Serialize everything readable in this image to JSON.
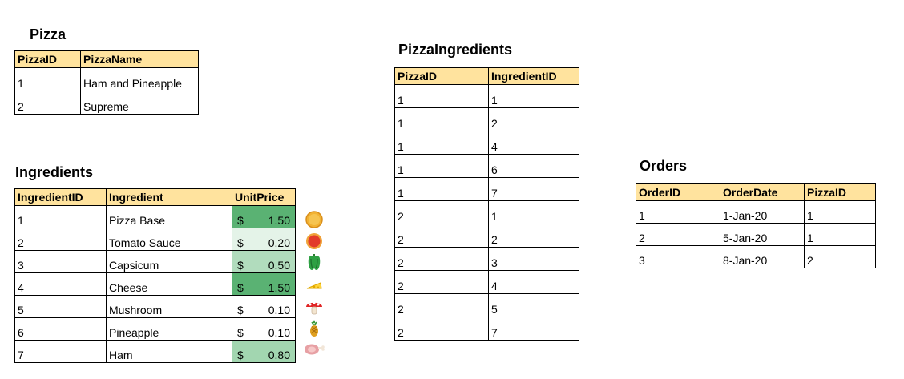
{
  "pizza": {
    "title": "Pizza",
    "headers": [
      "PizzaID",
      "PizzaName"
    ],
    "rows": [
      [
        "1",
        "Ham and Pineapple"
      ],
      [
        "2",
        "Supreme"
      ]
    ]
  },
  "ingredients": {
    "title": "Ingredients",
    "headers": [
      "IngredientID",
      "Ingredient",
      "UnitPrice"
    ],
    "currency": "$",
    "rows": [
      {
        "id": "1",
        "name": "Pizza Base",
        "price": "1.50",
        "color": "#5ab273",
        "icon": "pizza-base-icon"
      },
      {
        "id": "2",
        "name": "Tomato Sauce",
        "price": "0.20",
        "color": "#e4f3e8",
        "icon": "tomato-sauce-icon"
      },
      {
        "id": "3",
        "name": "Capsicum",
        "price": "0.50",
        "color": "#b1dcbd",
        "icon": "capsicum-icon"
      },
      {
        "id": "4",
        "name": "Cheese",
        "price": "1.50",
        "color": "#5ab273",
        "icon": "cheese-icon"
      },
      {
        "id": "5",
        "name": "Mushroom",
        "price": "0.10",
        "color": "#ffffff",
        "icon": "mushroom-icon"
      },
      {
        "id": "6",
        "name": "Pineapple",
        "price": "0.10",
        "color": "#ffffff",
        "icon": "pineapple-icon"
      },
      {
        "id": "7",
        "name": "Ham",
        "price": "0.80",
        "color": "#a2d6b0",
        "icon": "ham-icon"
      }
    ]
  },
  "pizza_ingredients": {
    "title": "PizzaIngredients",
    "headers": [
      "PizzaID",
      "IngredientID"
    ],
    "rows": [
      [
        "1",
        "1"
      ],
      [
        "1",
        "2"
      ],
      [
        "1",
        "4"
      ],
      [
        "1",
        "6"
      ],
      [
        "1",
        "7"
      ],
      [
        "2",
        "1"
      ],
      [
        "2",
        "2"
      ],
      [
        "2",
        "3"
      ],
      [
        "2",
        "4"
      ],
      [
        "2",
        "5"
      ],
      [
        "2",
        "7"
      ]
    ]
  },
  "orders": {
    "title": "Orders",
    "headers": [
      "OrderID",
      "OrderDate",
      "PizzaID"
    ],
    "rows": [
      [
        "1",
        "1-Jan-20",
        "1"
      ],
      [
        "2",
        "5-Jan-20",
        "1"
      ],
      [
        "3",
        "8-Jan-20",
        "2"
      ]
    ]
  },
  "colors": {
    "header_fill": "#ffe39e",
    "price_scale_high": "#5ab273",
    "price_scale_low": "#ffffff"
  }
}
